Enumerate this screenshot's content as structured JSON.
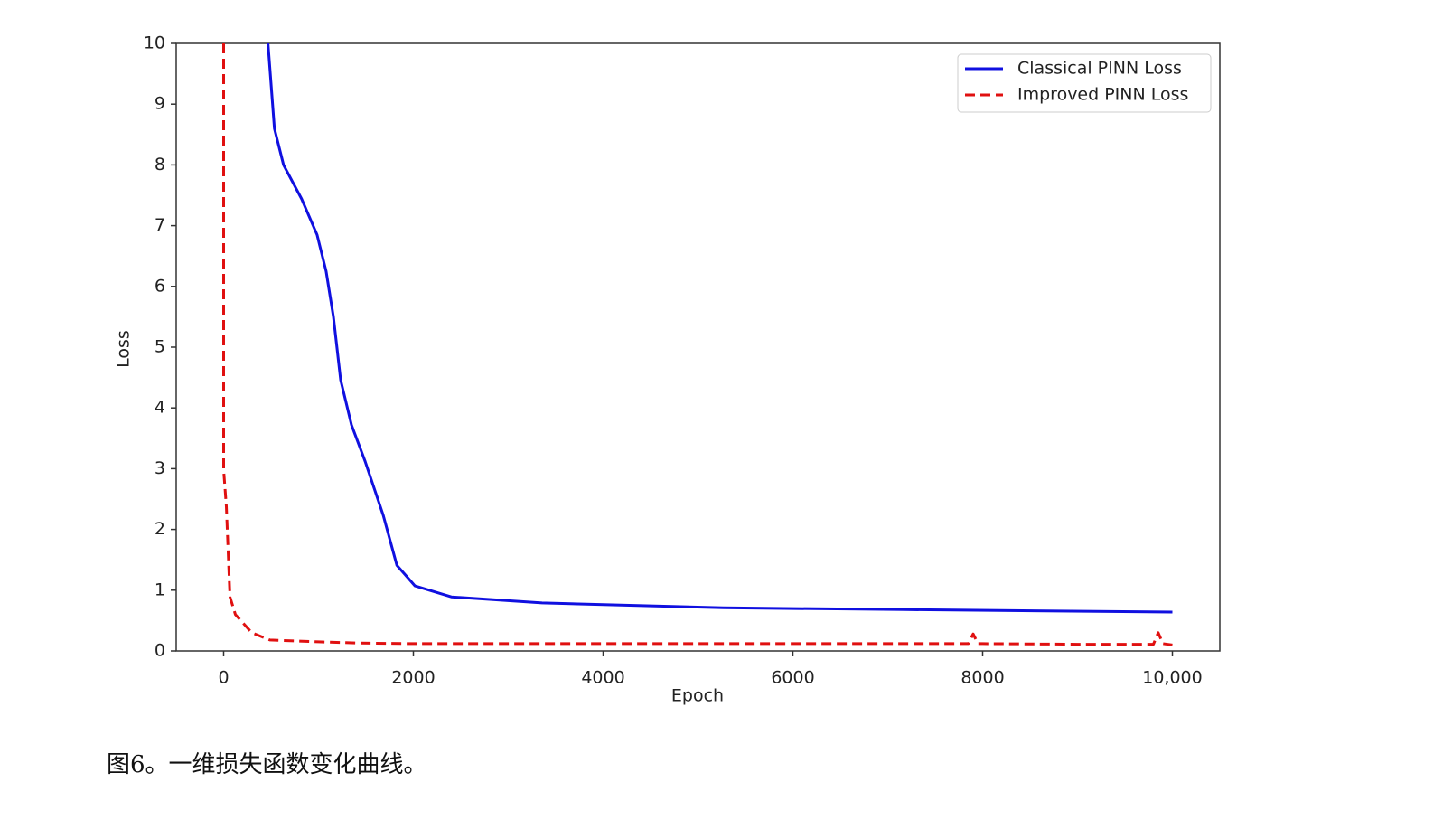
{
  "chart_data": {
    "type": "line",
    "xlabel": "Epoch",
    "ylabel": "Loss",
    "xlim": [
      -500,
      10500
    ],
    "ylim": [
      0,
      10
    ],
    "xticks": [
      0,
      2000,
      4000,
      6000,
      8000,
      {
        "value": 10000,
        "label": "10,000"
      }
    ],
    "yticks": [
      0,
      1,
      2,
      3,
      4,
      5,
      6,
      7,
      8,
      9,
      10
    ],
    "grid": false,
    "legend": "upper right",
    "series": [
      {
        "name": "Classical PINN Loss",
        "color": "#1010e0",
        "linestyle": "solid",
        "x": [
          468,
          535,
          631,
          822,
          985,
          1080,
          1157,
          1233,
          1348,
          1491,
          1683,
          1826,
          2017,
          2400,
          3356,
          5268,
          7180,
          10000
        ],
        "values": [
          10,
          8.6,
          8.0,
          7.44,
          6.85,
          6.25,
          5.5,
          4.46,
          3.72,
          3.12,
          2.23,
          1.41,
          1.07,
          0.89,
          0.79,
          0.71,
          0.68,
          0.64
        ]
      },
      {
        "name": "Improved PINN Loss",
        "color": "#e01010",
        "linestyle": "dashed",
        "x": [
          0,
          0,
          29,
          67,
          124,
          296,
          488,
          1000,
          1444,
          2000,
          3000,
          4000,
          5000,
          6000,
          7000,
          7850,
          7900,
          7950,
          8000,
          9000,
          9800,
          9850,
          9900,
          10000
        ],
        "values": [
          10,
          2.98,
          2.38,
          0.89,
          0.6,
          0.3,
          0.18,
          0.15,
          0.13,
          0.12,
          0.12,
          0.12,
          0.12,
          0.12,
          0.12,
          0.12,
          0.28,
          0.12,
          0.12,
          0.11,
          0.11,
          0.3,
          0.12,
          0.1
        ]
      }
    ]
  },
  "caption": "图6。一维损失函数变化曲线。"
}
